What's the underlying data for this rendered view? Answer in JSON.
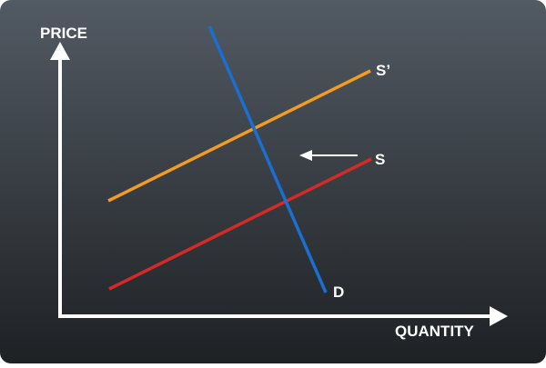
{
  "diagram": {
    "y_axis_label": "PRICE",
    "x_axis_label": "QUANTITY",
    "curves": [
      {
        "label": "S’",
        "color": "#f39c23"
      },
      {
        "label": "S",
        "color": "#d42b26"
      },
      {
        "label": "D",
        "color": "#1a6fd0"
      }
    ],
    "shift_arrow": {
      "direction": "left",
      "color": "#ffffff"
    }
  },
  "colors": {
    "background_top": "#525a63",
    "background_bottom": "#1e2124",
    "axis": "#ffffff",
    "text": "#ffffff"
  }
}
